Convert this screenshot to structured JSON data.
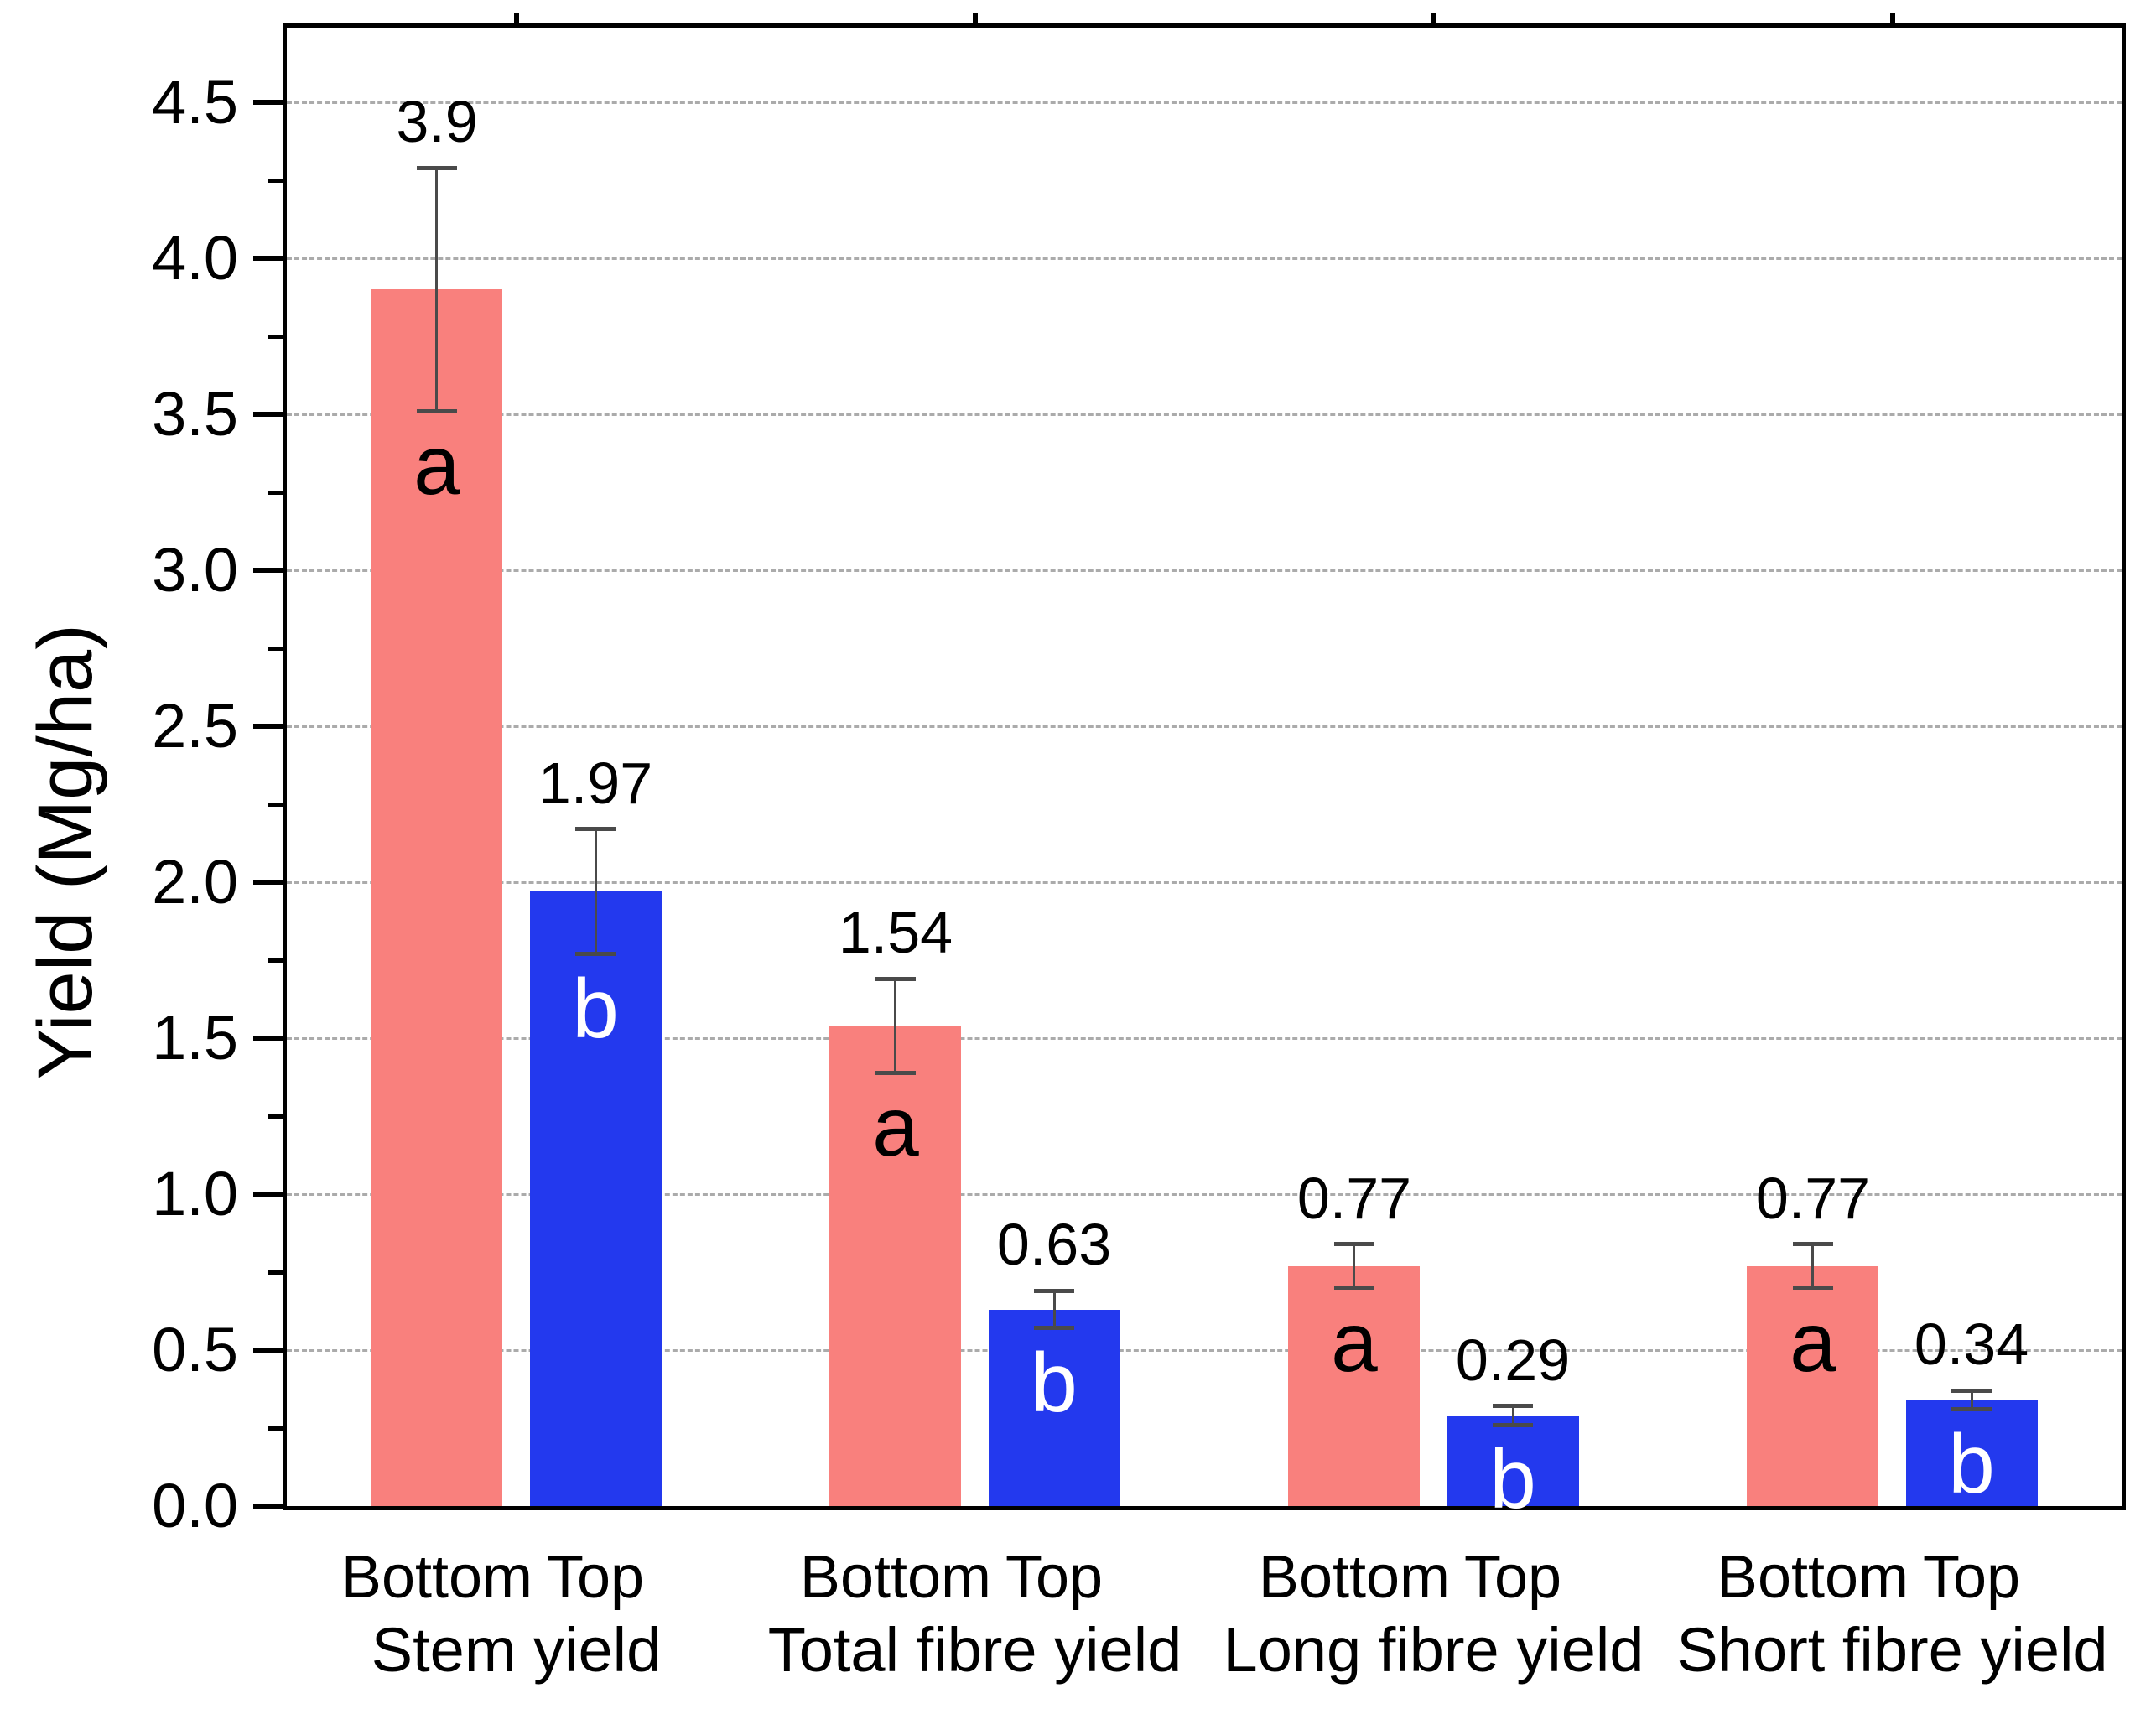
{
  "chart_data": {
    "type": "bar",
    "title": "",
    "xlabel": "",
    "ylabel": "Yield (Mg/ha)",
    "ylim": [
      0,
      4.74
    ],
    "ytick_labels": [
      "0.0",
      "0.5",
      "1.0",
      "1.5",
      "2.0",
      "2.5",
      "3.0",
      "3.5",
      "4.0",
      "4.5"
    ],
    "ytick_major_step": 0.5,
    "ytick_minor_step": 0.25,
    "grid": "horizontal dashed at major ticks",
    "legend": "none",
    "colors": {
      "bottom_series": "#f9807d",
      "top_series": "#2339ee",
      "letter_on_bottom": "#000000",
      "letter_on_top": "#ffffff",
      "gridline": "#ababab",
      "error_bar": "#4a4a4a",
      "axis": "#000000"
    },
    "series": [
      {
        "name": "Bottom",
        "color": "#f9807d"
      },
      {
        "name": "Top",
        "color": "#2339ee"
      }
    ],
    "groups": [
      {
        "category": "Stem yield",
        "bars": [
          {
            "label": "Bottom",
            "series": "bottom",
            "value": 3.9,
            "value_label": "3.9",
            "error": 0.39,
            "letter": "a"
          },
          {
            "label": "Top",
            "series": "top",
            "value": 1.97,
            "value_label": "1.97",
            "error": 0.2,
            "letter": "b"
          }
        ]
      },
      {
        "category": "Total fibre yield",
        "bars": [
          {
            "label": "Bottom",
            "series": "bottom",
            "value": 1.54,
            "value_label": "1.54",
            "error": 0.15,
            "letter": "a"
          },
          {
            "label": "Top",
            "series": "top",
            "value": 0.63,
            "value_label": "0.63",
            "error": 0.06,
            "letter": "b"
          }
        ]
      },
      {
        "category": "Long fibre yield",
        "bars": [
          {
            "label": "Bottom",
            "series": "bottom",
            "value": 0.77,
            "value_label": "0.77",
            "error": 0.07,
            "letter": "a"
          },
          {
            "label": "Top",
            "series": "top",
            "value": 0.29,
            "value_label": "0.29",
            "error": 0.03,
            "letter": "b"
          }
        ]
      },
      {
        "category": "Short fibre yield",
        "bars": [
          {
            "label": "Bottom",
            "series": "bottom",
            "value": 0.77,
            "value_label": "0.77",
            "error": 0.07,
            "letter": "a"
          },
          {
            "label": "Top",
            "series": "top",
            "value": 0.34,
            "value_label": "0.34",
            "error": 0.03,
            "letter": "b"
          }
        ]
      }
    ]
  }
}
